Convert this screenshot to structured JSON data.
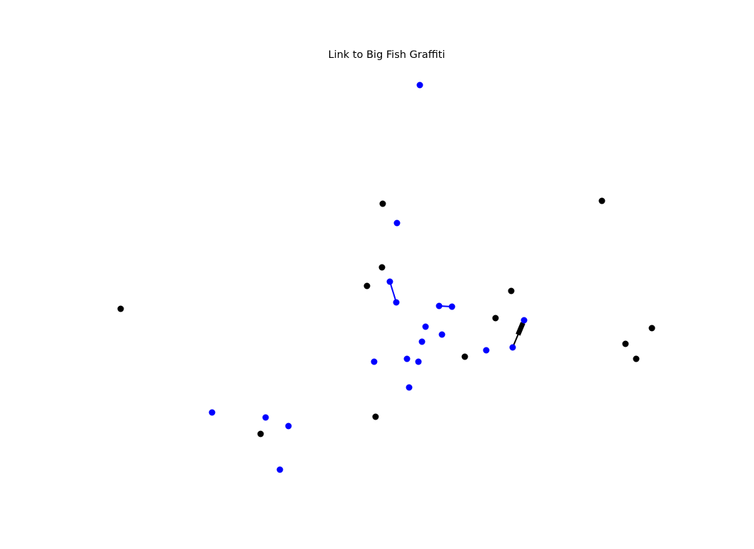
{
  "chart_data": {
    "type": "scatter",
    "title": "Link to Big Fish Graffiti",
    "xlabel": "",
    "ylabel": "",
    "axes_visible": false,
    "grid": false,
    "colors": {
      "blue": "#0000ff",
      "black": "#000000"
    },
    "series": [
      {
        "color": "#0000ff",
        "points": [
          [
            588,
            119
          ],
          [
            556,
            312
          ],
          [
            546,
            394
          ],
          [
            555,
            423
          ],
          [
            615,
            428
          ],
          [
            633,
            429
          ],
          [
            596,
            457
          ],
          [
            619,
            468
          ],
          [
            591,
            478
          ],
          [
            734,
            448
          ],
          [
            681,
            490
          ],
          [
            718,
            486
          ],
          [
            570,
            502
          ],
          [
            586,
            506
          ],
          [
            524,
            506
          ],
          [
            573,
            542
          ],
          [
            297,
            577
          ],
          [
            372,
            584
          ],
          [
            404,
            596
          ],
          [
            392,
            657
          ]
        ]
      },
      {
        "color": "#000000",
        "points": [
          [
            536,
            285
          ],
          [
            535,
            374
          ],
          [
            514,
            400
          ],
          [
            843,
            281
          ],
          [
            716,
            407
          ],
          [
            694,
            445
          ],
          [
            169,
            432
          ],
          [
            913,
            459
          ],
          [
            876,
            481
          ],
          [
            891,
            502
          ],
          [
            651,
            499
          ],
          [
            526,
            583
          ],
          [
            365,
            607
          ]
        ]
      }
    ],
    "edges": [
      {
        "from": [
          546,
          394
        ],
        "to": [
          555,
          423
        ],
        "color": "#0000ff",
        "arrow": false
      },
      {
        "from": [
          615,
          428
        ],
        "to": [
          633,
          429
        ],
        "color": "#0000ff",
        "arrow": false
      },
      {
        "from": [
          718,
          486
        ],
        "to": [
          734,
          448
        ],
        "color": "#000000",
        "arrow": true
      }
    ]
  }
}
